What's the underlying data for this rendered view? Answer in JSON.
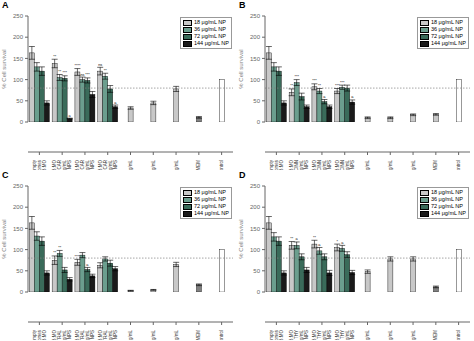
{
  "chart_data": [
    {
      "type": "bar",
      "title": "A",
      "ylabel": "% Cell survival",
      "ylim": [
        0,
        250
      ],
      "yticks": [
        0,
        50,
        100,
        150,
        200,
        250
      ],
      "reference_line": 80,
      "grid": false,
      "legend": "upper right",
      "categories": [
        "Empty\nLiposomes\nDODAB:MO",
        "DODAB:MO\nCAR\n128μg/mL\nNPS",
        "DODAB:MO\nCAR\n64 μg/mL\nNPS",
        "DODAB:MO\nCAR\n32 μg/mL\nNPS",
        "CAR 128 μg/mL",
        "CAR 64 μg/mL",
        "CAR 32 μg/mL",
        "Tris-DMEM",
        "Growth control"
      ],
      "series": [
        {
          "name": "18 μg/mL NP",
          "color": "#c8c8c8",
          "values": [
            163,
            138,
            118,
            120,
            null,
            null,
            null,
            null,
            null
          ],
          "errors": [
            15,
            10,
            8,
            9,
            null,
            null,
            null,
            null,
            null
          ]
        },
        {
          "name": "36 μg/mL NP",
          "color": "#6b9e8e",
          "values": [
            130,
            105,
            100,
            108,
            null,
            null,
            null,
            null,
            null
          ],
          "errors": [
            10,
            7,
            6,
            7,
            null,
            null,
            null,
            null,
            null
          ]
        },
        {
          "name": "72 μg/mL NP",
          "color": "#3a6b5a",
          "values": [
            120,
            103,
            98,
            78,
            null,
            null,
            null,
            null,
            null
          ],
          "errors": [
            10,
            6,
            6,
            8,
            null,
            null,
            null,
            null,
            null
          ]
        },
        {
          "name": "144 μg/mL NP",
          "color": "#1a1a1a",
          "values": [
            45,
            8,
            65,
            36,
            null,
            null,
            null,
            null,
            null
          ],
          "errors": [
            5,
            1,
            7,
            4,
            null,
            null,
            null,
            null,
            null
          ]
        },
        {
          "values": [
            null,
            null,
            null,
            null,
            33,
            45,
            78,
            11,
            100
          ],
          "errors": [
            null,
            null,
            null,
            null,
            3,
            4,
            6,
            2,
            0
          ],
          "colors": [
            null,
            null,
            null,
            null,
            "#c8c8c8",
            "#c8c8c8",
            "#c8c8c8",
            "#808080",
            "white"
          ]
        }
      ],
      "annotations": [
        {
          "text": "**",
          "category": "DODAB:MO\nCAR\n128μg/mL\nNPS",
          "series": "18 μg/mL NP"
        },
        {
          "text": "**",
          "category": "DODAB:MO\nCAR\n128μg/mL\nNPS",
          "series": "36 μg/mL NP"
        },
        {
          "text": "***",
          "category": "DODAB:MO\nCAR\n128μg/mL\nNPS",
          "series": "72 μg/mL NP"
        },
        {
          "text": "a",
          "category": "DODAB:MO\nCAR\n128μg/mL\nNPS",
          "series": "144 μg/mL NP"
        },
        {
          "text": "****",
          "category": "DODAB:MO\nCAR\n64 μg/mL\nNPS",
          "series": "18 μg/mL NP"
        },
        {
          "text": "ns",
          "category": "DODAB:MO\nCAR\n64 μg/mL\nNPS",
          "series": "36 μg/mL NP"
        },
        {
          "text": "***",
          "category": "DODAB:MO\nCAR\n64 μg/mL\nNPS",
          "series": "72 μg/mL NP"
        },
        {
          "text": "ns",
          "category": "DODAB:MO\nCAR\n32 μg/mL\nNPS",
          "series": "18 μg/mL NP"
        },
        {
          "text": "**",
          "category": "DODAB:MO\nCAR\n32 μg/mL\nNPS",
          "series": "36 μg/mL NP"
        },
        {
          "text": "a",
          "category": "DODAB:MO\nCAR\n32 μg/mL\nNPS",
          "series": "144 μg/mL NP"
        }
      ]
    },
    {
      "type": "bar",
      "title": "B",
      "ylabel": "% Cell survival",
      "ylim": [
        0,
        250
      ],
      "yticks": [
        0,
        50,
        100,
        150,
        200,
        250
      ],
      "reference_line": 80,
      "grid": false,
      "legend": "upper right",
      "categories": [
        "Empty\nLiposomes\nDODAB:MO",
        "DODAB:MO\nCINN\n64 μg/mL\nNPS",
        "DODAB:MO\nCINN\n32 μg/mL\nNPS",
        "DODAB:MO\nCINN\n16 μg/mL\nNPS",
        "CINN 64 μg/mL",
        "CINN 32 μg/mL",
        "CINN 16 μg/mL",
        "Tris-DMEM",
        "Growth control"
      ],
      "series": [
        {
          "name": "18 μg/mL NP",
          "color": "#c8c8c8",
          "values": [
            163,
            70,
            83,
            73,
            null,
            null,
            null,
            null,
            null
          ],
          "errors": [
            15,
            8,
            7,
            6,
            null,
            null,
            null,
            null,
            null
          ]
        },
        {
          "name": "36 μg/mL NP",
          "color": "#6b9e8e",
          "values": [
            130,
            93,
            73,
            82,
            null,
            null,
            null,
            null,
            null
          ],
          "errors": [
            10,
            7,
            6,
            5,
            null,
            null,
            null,
            null,
            null
          ]
        },
        {
          "name": "72 μg/mL NP",
          "color": "#3a6b5a",
          "values": [
            120,
            60,
            48,
            80,
            null,
            null,
            null,
            null,
            null
          ],
          "errors": [
            10,
            8,
            5,
            7,
            null,
            null,
            null,
            null,
            null
          ]
        },
        {
          "name": "144 μg/mL NP",
          "color": "#1a1a1a",
          "values": [
            45,
            36,
            36,
            47,
            null,
            null,
            null,
            null,
            null
          ],
          "errors": [
            5,
            4,
            4,
            5,
            null,
            null,
            null,
            null,
            null
          ]
        },
        {
          "values": [
            null,
            null,
            null,
            null,
            10,
            10,
            17,
            18,
            100
          ],
          "errors": [
            null,
            null,
            null,
            null,
            2,
            2,
            2,
            2,
            0
          ],
          "colors": [
            null,
            null,
            null,
            null,
            "#c8c8c8",
            "#c8c8c8",
            "#c8c8c8",
            "#c8c8c8",
            "white"
          ]
        }
      ],
      "annotations": [
        {
          "text": "**",
          "category": "DODAB:MO\nCINN\n64 μg/mL\nNPS",
          "series": "18 μg/mL NP"
        },
        {
          "text": "***",
          "category": "DODAB:MO\nCINN\n64 μg/mL\nNPS",
          "series": "36 μg/mL NP"
        },
        {
          "text": "***",
          "category": "DODAB:MO\nCINN\n32 μg/mL\nNPS",
          "series": "18 μg/mL NP"
        },
        {
          "text": "**",
          "category": "DODAB:MO\nCINN\n32 μg/mL\nNPS",
          "series": "36 μg/mL NP"
        },
        {
          "text": "a",
          "category": "DODAB:MO\nCINN\n32 μg/mL\nNPS",
          "series": "72 μg/mL NP"
        },
        {
          "text": "***",
          "category": "DODAB:MO\nCINN\n16 μg/mL\nNPS",
          "series": "18 μg/mL NP"
        },
        {
          "text": "***",
          "category": "DODAB:MO\nCINN\n16 μg/mL\nNPS",
          "series": "36 μg/mL NP"
        },
        {
          "text": "a",
          "category": "DODAB:MO\nCINN\n16 μg/mL\nNPS",
          "series": "144 μg/mL NP"
        }
      ]
    },
    {
      "type": "bar",
      "title": "C",
      "ylabel": "% Cell survival",
      "ylim": [
        0,
        250
      ],
      "yticks": [
        0,
        50,
        100,
        150,
        200,
        250
      ],
      "reference_line": 80,
      "grid": false,
      "legend": "upper right",
      "categories": [
        "Empty\nLiposomes\nDODAB:MO",
        "DODAB:MO\nCITRAL\n256μg/mL\nNPS",
        "DODAB:MO\nCITRAL\n128μg/mL\nNPS",
        "DODAB:MO\nCITRAL\n64μg/mL\nNPS",
        "CITRAL 256μg/mL",
        "CITRAL 128μg/mL",
        "CITRAL 64μg/mL",
        "Tris-DMEM",
        "Growth control"
      ],
      "series": [
        {
          "name": "18 μg/mL NP",
          "color": "#c8c8c8",
          "values": [
            163,
            75,
            70,
            63,
            null,
            null,
            null,
            null,
            null
          ],
          "errors": [
            15,
            10,
            7,
            6,
            null,
            null,
            null,
            null,
            null
          ]
        },
        {
          "name": "36 μg/mL NP",
          "color": "#6b9e8e",
          "values": [
            132,
            91,
            87,
            78,
            null,
            null,
            null,
            null,
            null
          ],
          "errors": [
            10,
            7,
            6,
            5,
            null,
            null,
            null,
            null,
            null
          ]
        },
        {
          "name": "72 μg/mL NP",
          "color": "#3a6b5a",
          "values": [
            120,
            52,
            53,
            68,
            null,
            null,
            null,
            null,
            null
          ],
          "errors": [
            10,
            6,
            5,
            7,
            null,
            null,
            null,
            null,
            null
          ]
        },
        {
          "name": "144 μg/mL NP",
          "color": "#1a1a1a",
          "values": [
            45,
            30,
            38,
            55,
            null,
            null,
            null,
            null,
            null
          ],
          "errors": [
            5,
            4,
            4,
            5,
            null,
            null,
            null,
            null,
            null
          ]
        },
        {
          "values": [
            null,
            null,
            null,
            null,
            3,
            5,
            65,
            17,
            100
          ],
          "errors": [
            null,
            null,
            null,
            null,
            1,
            1,
            5,
            2,
            0
          ],
          "colors": [
            null,
            null,
            null,
            null,
            "#c8c8c8",
            "#c8c8c8",
            "#c8c8c8",
            "#808080",
            "white"
          ]
        }
      ],
      "annotations": [
        {
          "text": "**",
          "category": "DODAB:MO\nCITRAL\n256μg/mL\nNPS",
          "series": "18 μg/mL NP"
        },
        {
          "text": "**",
          "category": "DODAB:MO\nCITRAL\n256μg/mL\nNPS",
          "series": "36 μg/mL NP"
        },
        {
          "text": "****",
          "category": "DODAB:MO\nCITRAL\n128μg/mL\nNPS",
          "series": "18 μg/mL NP"
        },
        {
          "text": "a",
          "category": "DODAB:MO\nCITRAL\n128μg/mL\nNPS",
          "series": "72 μg/mL NP"
        }
      ]
    },
    {
      "type": "bar",
      "title": "D",
      "ylabel": "% Cell survival",
      "ylim": [
        0,
        250
      ],
      "yticks": [
        0,
        50,
        100,
        150,
        200,
        250
      ],
      "reference_line": 80,
      "grid": false,
      "legend": "upper right",
      "categories": [
        "Empty\nLiposomes\nDODAB:MO",
        "DODAB:MO\nTHY\n128μg/mL\nNPS",
        "DODAB:MO\nTHY\n64 μg/mL\nNPS",
        "DODAB:MO\nTHY\n32 μg/mL\nNPS",
        "Thy 128μg/mL",
        "Thy 64 μg/mL",
        "Thy 32 μg/mL",
        "Tris-4μMEM",
        "Growth control"
      ],
      "series": [
        {
          "name": "18 μg/mL NP",
          "color": "#c8c8c8",
          "values": [
            163,
            110,
            113,
            105,
            null,
            null,
            null,
            null,
            null
          ],
          "errors": [
            15,
            9,
            9,
            8,
            null,
            null,
            null,
            null,
            null
          ]
        },
        {
          "name": "36 μg/mL NP",
          "color": "#6b9e8e",
          "values": [
            130,
            110,
            97,
            103,
            null,
            null,
            null,
            null,
            null
          ],
          "errors": [
            10,
            8,
            8,
            7,
            null,
            null,
            null,
            null,
            null
          ]
        },
        {
          "name": "72 μg/mL NP",
          "color": "#3a6b5a",
          "values": [
            120,
            83,
            83,
            88,
            null,
            null,
            null,
            null,
            null
          ],
          "errors": [
            10,
            7,
            7,
            7,
            null,
            null,
            null,
            null,
            null
          ]
        },
        {
          "name": "144 μg/mL NP",
          "color": "#1a1a1a",
          "values": [
            45,
            52,
            45,
            46,
            null,
            null,
            null,
            null,
            null
          ],
          "errors": [
            5,
            6,
            6,
            5,
            null,
            null,
            null,
            null,
            null
          ]
        },
        {
          "values": [
            null,
            null,
            null,
            null,
            48,
            78,
            78,
            12,
            100
          ],
          "errors": [
            null,
            null,
            null,
            null,
            4,
            5,
            5,
            2,
            0
          ],
          "colors": [
            null,
            null,
            null,
            null,
            "#c8c8c8",
            "#c8c8c8",
            "#c8c8c8",
            "#808080",
            "white"
          ]
        }
      ],
      "annotations": [
        {
          "text": "**",
          "category": "DODAB:MO\nTHY\n128μg/mL\nNPS",
          "series": "18 μg/mL NP"
        },
        {
          "text": "a",
          "category": "DODAB:MO\nTHY\n128μg/mL\nNPS",
          "series": "36 μg/mL NP"
        },
        {
          "text": "**",
          "category": "DODAB:MO\nTHY\n64 μg/mL\nNPS",
          "series": "18 μg/mL NP"
        },
        {
          "text": "a",
          "category": "DODAB:MO\nTHY\n64 μg/mL\nNPS",
          "series": "36 μg/mL NP"
        },
        {
          "text": "*",
          "category": "DODAB:MO\nTHY\n32 μg/mL\nNPS",
          "series": "18 μg/mL NP"
        },
        {
          "text": "a",
          "category": "DODAB:MO\nTHY\n32 μg/mL\nNPS",
          "series": "36 μg/mL NP"
        }
      ]
    }
  ]
}
